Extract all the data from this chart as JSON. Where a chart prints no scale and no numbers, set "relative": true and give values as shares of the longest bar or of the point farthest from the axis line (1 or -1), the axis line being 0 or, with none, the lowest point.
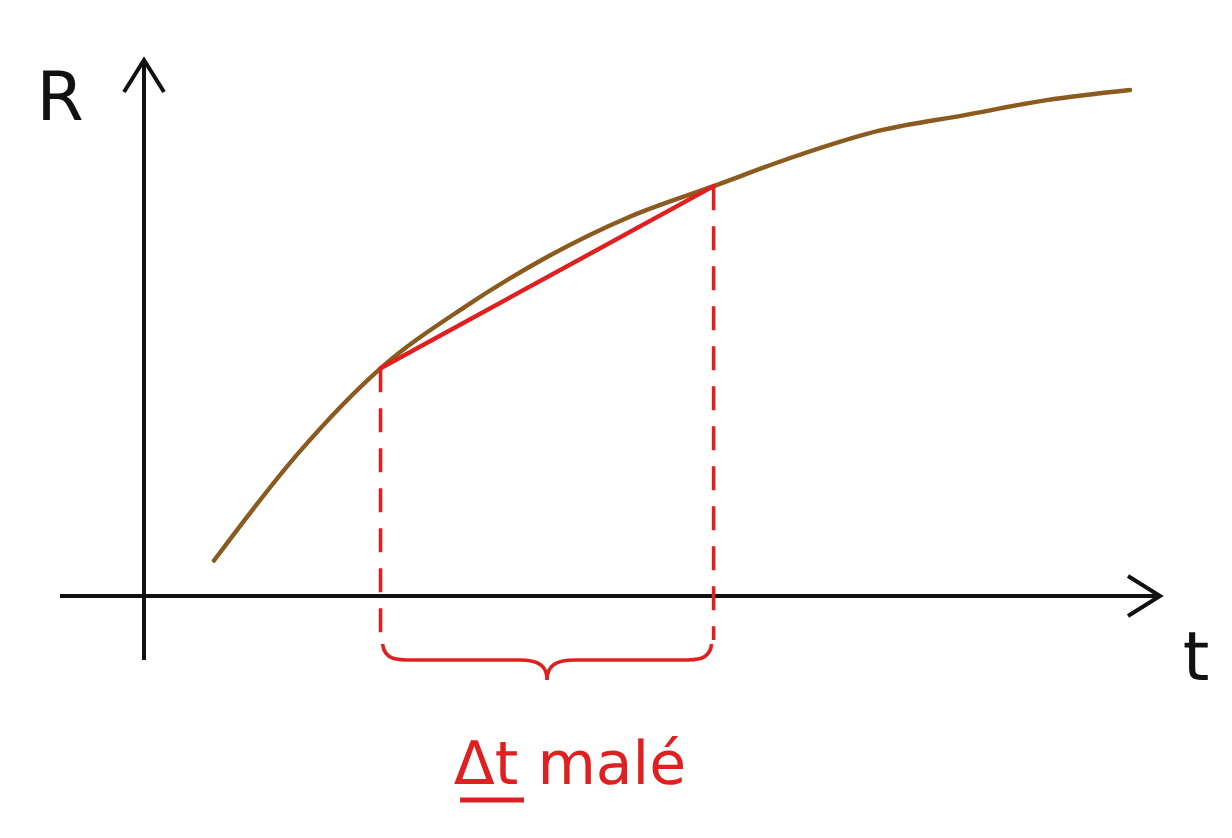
{
  "chart_data": {
    "type": "line",
    "relative": true,
    "xlabel": "t",
    "ylabel": "R",
    "categories": [
      null,
      null,
      null,
      null,
      null,
      null,
      null,
      null,
      null,
      null,
      null,
      null
    ],
    "series": [
      {
        "type": "line",
        "color": "#8b5a1e",
        "values": [
          0.07,
          0.28,
          0.45,
          0.57,
          0.67,
          0.75,
          0.81,
          0.87,
          0.92,
          0.95,
          0.98,
          1.0
        ]
      },
      {
        "type": "line",
        "color": "#e02020",
        "values": [
          null,
          null,
          0.45,
          null,
          null,
          null,
          0.81,
          null,
          null,
          null,
          null,
          null
        ]
      }
    ],
    "annotations": [
      "Δt malé"
    ]
  }
}
